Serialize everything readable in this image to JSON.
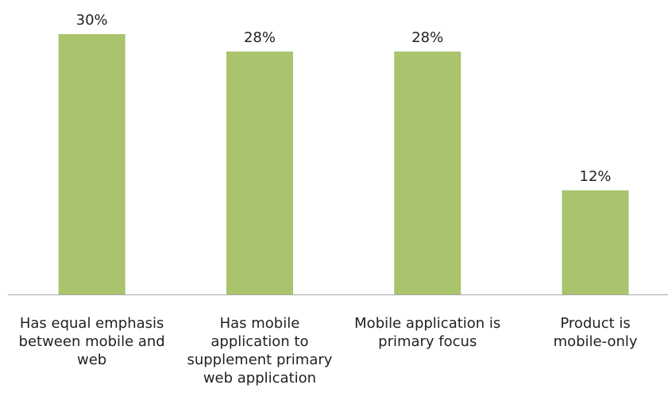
{
  "chart_data": {
    "type": "bar",
    "categories": [
      "Has equal emphasis between mobile and web",
      "Has mobile application to supplement primary web application",
      "Mobile application is primary focus",
      "Product is mobile-only"
    ],
    "values": [
      30,
      28,
      28,
      12
    ],
    "value_labels": [
      "30%",
      "28%",
      "28%",
      "12%"
    ],
    "color": "#a9c46c"
  }
}
